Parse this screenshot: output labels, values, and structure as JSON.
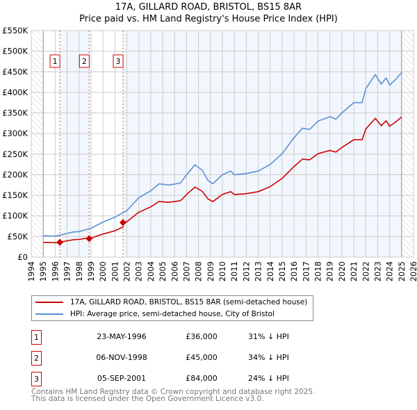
{
  "title": "17A, GILLARD ROAD, BRISTOL, BS15 8AR",
  "subtitle": "Price paid vs. HM Land Registry's House Price Index (HPI)",
  "chart_data": {
    "type": "line",
    "title": "17A, GILLARD ROAD, BRISTOL, BS15 8AR — Price paid vs. HM Land Registry's House Price Index (HPI)",
    "xlim": [
      1994,
      2026
    ],
    "ylim": [
      0,
      550000
    ],
    "xticks": [
      "1994",
      "1995",
      "1996",
      "1997",
      "1998",
      "1999",
      "2000",
      "2001",
      "2002",
      "2003",
      "2004",
      "2005",
      "2006",
      "2007",
      "2008",
      "2009",
      "2010",
      "2011",
      "2012",
      "2013",
      "2014",
      "2015",
      "2016",
      "2017",
      "2018",
      "2019",
      "2020",
      "2021",
      "2022",
      "2023",
      "2024",
      "2025",
      "2026"
    ],
    "yticks": [
      {
        "v": 0,
        "label": "£0"
      },
      {
        "v": 50000,
        "label": "£50K"
      },
      {
        "v": 100000,
        "label": "£100K"
      },
      {
        "v": 150000,
        "label": "£150K"
      },
      {
        "v": 200000,
        "label": "£200K"
      },
      {
        "v": 250000,
        "label": "£250K"
      },
      {
        "v": 300000,
        "label": "£300K"
      },
      {
        "v": 350000,
        "label": "£350K"
      },
      {
        "v": 400000,
        "label": "£400K"
      },
      {
        "v": 450000,
        "label": "£450K"
      },
      {
        "v": 500000,
        "label": "£500K"
      },
      {
        "v": 550000,
        "label": "£550K"
      }
    ],
    "grid": true,
    "data_range": [
      1995,
      2025
    ],
    "series": [
      {
        "name": "HPI: Average price, semi-detached house, City of Bristol",
        "color": "#5b8fd4",
        "x": [
          1995,
          1996,
          1996.5,
          1997.5,
          1998,
          1999,
          2000,
          2001,
          2002,
          2003,
          2004,
          2004.7,
          2005.5,
          2006.5,
          2007,
          2007.7,
          2008.3,
          2008.8,
          2009.2,
          2010,
          2010.7,
          2011,
          2012,
          2013,
          2014,
          2015,
          2016,
          2016.7,
          2017.3,
          2018,
          2019,
          2019.5,
          2020,
          2021,
          2021.7,
          2022,
          2022.8,
          2023.3,
          2023.7,
          2024,
          2024.5,
          2025
        ],
        "y": [
          52000,
          51000,
          54000,
          61000,
          62000,
          70000,
          85000,
          97000,
          113000,
          144000,
          161000,
          178000,
          175000,
          180000,
          200000,
          224000,
          211000,
          186000,
          178000,
          200000,
          209000,
          200000,
          203000,
          209000,
          225000,
          251000,
          290000,
          313000,
          310000,
          330000,
          341000,
          335000,
          350000,
          375000,
          375000,
          409000,
          443000,
          420000,
          435000,
          418000,
          431000,
          448000
        ]
      },
      {
        "name": "17A, GILLARD ROAD, BRISTOL, BS15 8AR (semi-detached house)",
        "color": "#cc0000",
        "x": [
          1995,
          1996,
          1996.39,
          1996.5,
          1997.5,
          1998,
          1998.85,
          1998.85,
          1999,
          2000,
          2001,
          2001.68,
          2001.68,
          2002,
          2003,
          2004,
          2004.7,
          2005.5,
          2006.5,
          2007,
          2007.7,
          2008.3,
          2008.8,
          2009.2,
          2010,
          2010.7,
          2011,
          2012,
          2013,
          2014,
          2015,
          2016,
          2016.7,
          2017.3,
          2018,
          2019,
          2019.5,
          2020,
          2021,
          2021.7,
          2022,
          2022.8,
          2023.3,
          2023.7,
          2024,
          2024.5,
          2025
        ],
        "y": [
          36000,
          35000,
          36000,
          37000,
          42000,
          43000,
          47000,
          45000,
          46000,
          56000,
          64000,
          73000,
          84000,
          86000,
          109000,
          122000,
          135000,
          133000,
          137000,
          152000,
          170000,
          160000,
          141000,
          135000,
          152000,
          159000,
          152000,
          154000,
          159000,
          171000,
          191000,
          220000,
          238000,
          236000,
          251000,
          259000,
          255000,
          266000,
          285000,
          285000,
          311000,
          337000,
          319000,
          331000,
          318000,
          328000,
          340000
        ]
      }
    ],
    "sales": [
      {
        "n": "1",
        "x": 1996.39,
        "y": 36000
      },
      {
        "n": "2",
        "x": 1998.85,
        "y": 45000
      },
      {
        "n": "3",
        "x": 2001.68,
        "y": 84000
      }
    ]
  },
  "legend": {
    "items": [
      {
        "label": "17A, GILLARD ROAD, BRISTOL, BS15 8AR (semi-detached house)",
        "color": "#cc0000"
      },
      {
        "label": "HPI: Average price, semi-detached house, City of Bristol",
        "color": "#5b8fd4"
      }
    ]
  },
  "transactions": [
    {
      "n": "1",
      "date": "23-MAY-1996",
      "price": "£36,000",
      "hpi": "31% ↓ HPI"
    },
    {
      "n": "2",
      "date": "06-NOV-1998",
      "price": "£45,000",
      "hpi": "34% ↓ HPI"
    },
    {
      "n": "3",
      "date": "05-SEP-2001",
      "price": "£84,000",
      "hpi": "24% ↓ HPI"
    }
  ],
  "footer": {
    "line1": "Contains HM Land Registry data © Crown copyright and database right 2025.",
    "line2": "This data is licensed under the Open Government Licence v3.0."
  }
}
